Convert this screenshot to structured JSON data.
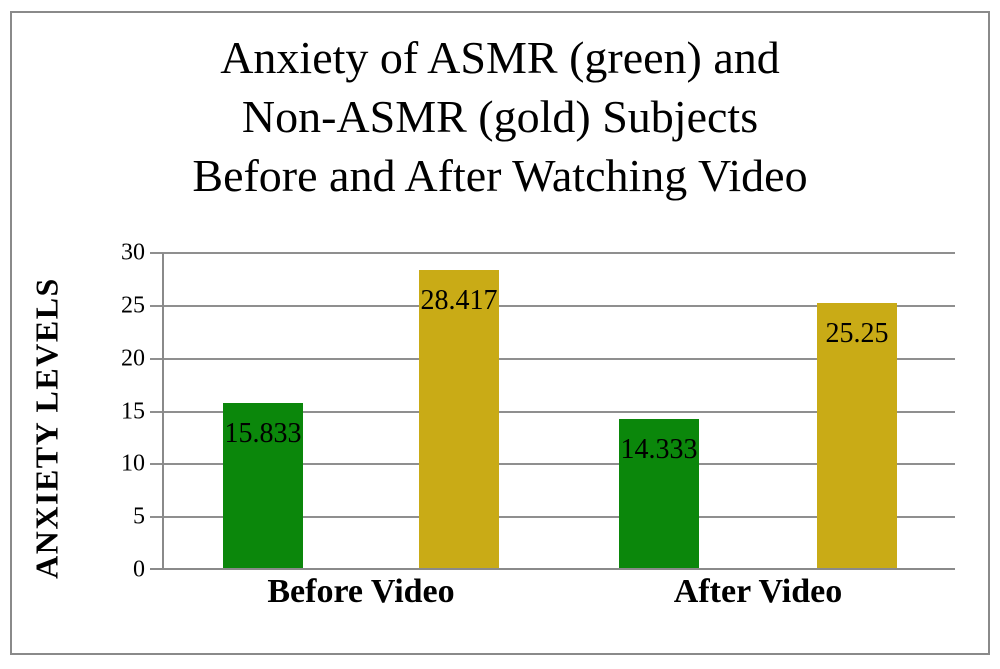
{
  "chart_data": {
    "type": "bar",
    "title": "Anxiety of ASMR (green) and Non-ASMR (gold) Subjects Before and After Watching Video",
    "title_lines": [
      "Anxiety of ASMR (green) and",
      "Non-ASMR (gold) Subjects",
      "Before and After Watching Video"
    ],
    "ylabel": "ANXIETY LEVELS",
    "xlabel": "",
    "categories": [
      "Before Video",
      "After Video"
    ],
    "series": [
      {
        "name": "ASMR",
        "color": "#0b870b",
        "values": [
          15.833,
          14.333
        ],
        "data_labels": [
          "15.833",
          "14.333"
        ]
      },
      {
        "name": "Non-ASMR",
        "color": "#c9ab16",
        "values": [
          28.417,
          25.25
        ],
        "data_labels": [
          "28.417",
          "25.25"
        ]
      }
    ],
    "ylim": [
      0,
      30
    ],
    "yticks": [
      0,
      5,
      10,
      15,
      20,
      25,
      30
    ],
    "grid": true,
    "legend": "none",
    "gridline_color": "#8f8f8f",
    "axis_color": "#8a8a8a",
    "data_label_color": "#000000"
  }
}
